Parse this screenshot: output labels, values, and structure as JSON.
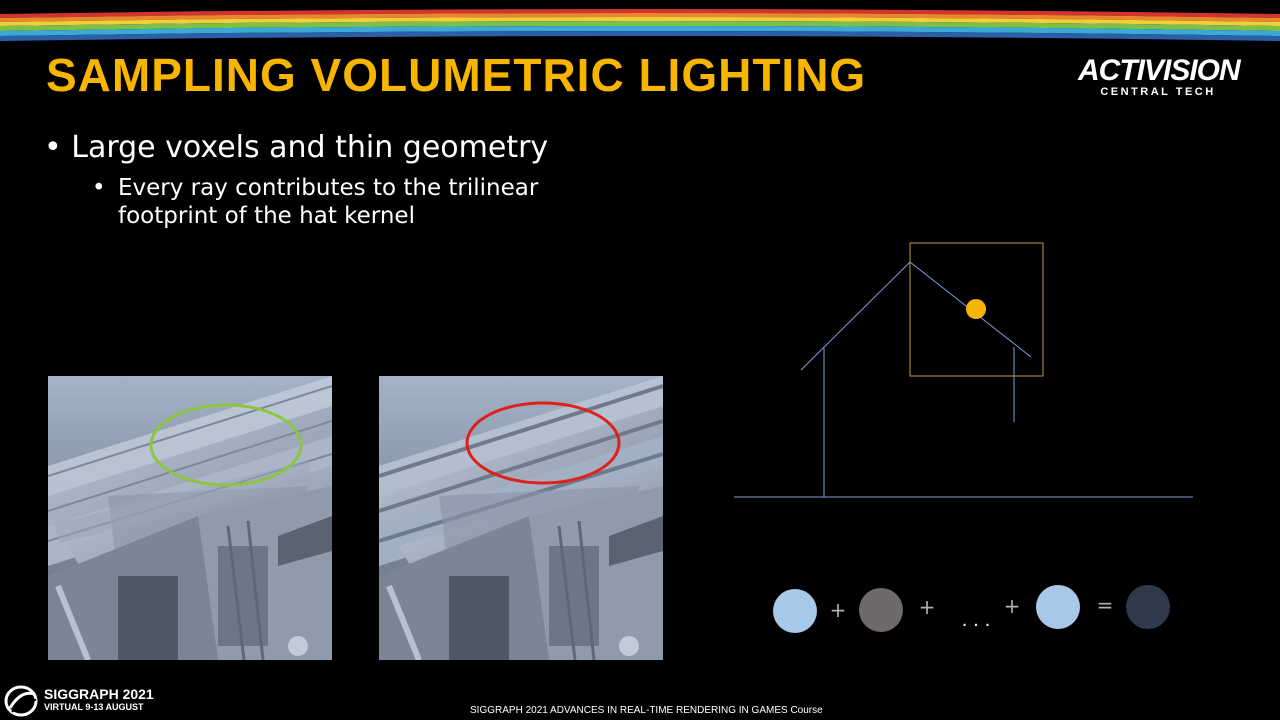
{
  "slide": {
    "title": "SAMPLING VOLUMETRIC LIGHTING",
    "bullet_level1": "Large voxels and thin geometry",
    "bullet_level2": "Every ray contributes to the trilinear footprint of the hat kernel"
  },
  "logo": {
    "brand": "ACTIVISION",
    "division": "CENTRAL TECH"
  },
  "footer": {
    "event": "SIGGRAPH 2021",
    "event_dates": "VIRTUAL  9-13 AUGUST",
    "course": "SIGGRAPH 2021 ADVANCES IN REAL-TIME RENDERING IN GAMES Course"
  },
  "equation": {
    "plus": "+",
    "ellipsis": ". . .",
    "equals": "="
  },
  "colors": {
    "title": "#f7b500",
    "highlight_good": "#8cc63f",
    "highlight_bad": "#e0201b",
    "diagram_line": "#7f9fd8",
    "kernel_box": "#c49a45",
    "light_point": "#f7b500",
    "sample_light": "#a8c8ea",
    "sample_gray": "#6e6a69",
    "sample_result": "#2e3a4c"
  }
}
